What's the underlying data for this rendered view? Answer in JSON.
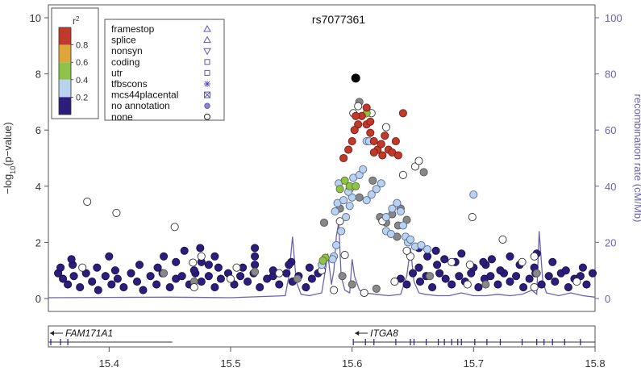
{
  "chart_data": {
    "type": "scatter",
    "title": "rs7077361",
    "ylabel_left_main": "−log",
    "ylabel_left_sub": "10",
    "ylabel_left_rest": "(p−value)",
    "ylabel_right": "recombination rate (cM/Mb)",
    "xlim": [
      15.35,
      15.8
    ],
    "ylim_left": [
      0,
      10
    ],
    "ylim_right": [
      0,
      100
    ],
    "x_ticks": [
      "15.4",
      "15.5",
      "15.6",
      "15.7",
      "15.8"
    ],
    "x_tick_values": [
      15.4,
      15.5,
      15.6,
      15.7,
      15.8
    ],
    "y_ticks_left": [
      "0",
      "2",
      "4",
      "6",
      "8",
      "10"
    ],
    "y_tick_values_left": [
      0,
      2,
      4,
      6,
      8,
      10
    ],
    "y_ticks_right": [
      "0",
      "20",
      "40",
      "60",
      "80",
      "100"
    ],
    "y_tick_values_right": [
      0,
      20,
      40,
      60,
      80,
      100
    ],
    "grid": false,
    "legend_position": "top-left",
    "colorbar": {
      "title": "r",
      "title_sup": "2",
      "labels": [
        "0.8",
        "0.6",
        "0.4",
        "0.2"
      ],
      "bands": [
        {
          "range": [
            0.8,
            1.0
          ],
          "color": "#c0392b"
        },
        {
          "range": [
            0.6,
            0.8
          ],
          "color": "#e0a53a"
        },
        {
          "range": [
            0.4,
            0.6
          ],
          "color": "#8ec24a"
        },
        {
          "range": [
            0.2,
            0.4
          ],
          "color": "#b9d3ef"
        },
        {
          "range": [
            0.0,
            0.2
          ],
          "color": "#2c1d7a"
        }
      ]
    },
    "annotation_legend": [
      {
        "label": "framestop",
        "symbol": "triangle-up"
      },
      {
        "label": "splice",
        "symbol": "triangle-up"
      },
      {
        "label": "nonsyn",
        "symbol": "triangle-down"
      },
      {
        "label": "coding",
        "symbol": "square"
      },
      {
        "label": "utr",
        "symbol": "square"
      },
      {
        "label": "tfbscons",
        "symbol": "asterisk"
      },
      {
        "label": "mcs44placental",
        "symbol": "square-x"
      },
      {
        "label": "no annotation",
        "symbol": "circle-filled"
      },
      {
        "label": "none",
        "symbol": "circle-open"
      }
    ],
    "lead_snp": {
      "x": 15.603,
      "y": 7.85
    },
    "snps": [
      [
        15.358,
        0.9,
        "N"
      ],
      [
        15.362,
        0.7,
        "N"
      ],
      [
        15.366,
        0.5,
        "N"
      ],
      [
        15.371,
        0.8,
        "N"
      ],
      [
        15.376,
        0.4,
        "N"
      ],
      [
        15.381,
        0.9,
        "N"
      ],
      [
        15.386,
        0.6,
        "N"
      ],
      [
        15.391,
        0.3,
        "N"
      ],
      [
        15.397,
        0.8,
        "N"
      ],
      [
        15.402,
        0.5,
        "N"
      ],
      [
        15.407,
        0.7,
        "N"
      ],
      [
        15.412,
        0.4,
        "N"
      ],
      [
        15.418,
        0.9,
        "N"
      ],
      [
        15.423,
        0.6,
        "N"
      ],
      [
        15.428,
        0.3,
        "N"
      ],
      [
        15.434,
        0.8,
        "N"
      ],
      [
        15.439,
        0.5,
        "N"
      ],
      [
        15.444,
        0.9,
        "N"
      ],
      [
        15.45,
        0.4,
        "N"
      ],
      [
        15.455,
        0.7,
        "N"
      ],
      [
        15.46,
        0.8,
        "N"
      ],
      [
        15.466,
        0.5,
        "N"
      ],
      [
        15.471,
        0.9,
        "N"
      ],
      [
        15.476,
        0.6,
        "N"
      ],
      [
        15.482,
        0.8,
        "N"
      ],
      [
        15.487,
        0.4,
        "N"
      ],
      [
        15.492,
        0.7,
        "N"
      ],
      [
        15.498,
        0.9,
        "N"
      ],
      [
        15.503,
        0.5,
        "N"
      ],
      [
        15.508,
        0.8,
        "N"
      ],
      [
        15.514,
        0.6,
        "N"
      ],
      [
        15.519,
        0.9,
        "N"
      ],
      [
        15.524,
        0.4,
        "N"
      ],
      [
        15.53,
        0.7,
        "N"
      ],
      [
        15.535,
        0.8,
        "N"
      ],
      [
        15.54,
        0.5,
        "N"
      ],
      [
        15.546,
        0.9,
        "N"
      ],
      [
        15.551,
        0.6,
        "N"
      ],
      [
        15.556,
        0.8,
        "N"
      ],
      [
        15.562,
        0.4,
        "N"
      ],
      [
        15.567,
        0.7,
        "N"
      ],
      [
        15.572,
        0.9,
        "N"
      ],
      [
        15.64,
        0.7,
        "N"
      ],
      [
        15.645,
        0.5,
        "N"
      ],
      [
        15.65,
        0.9,
        "N"
      ],
      [
        15.656,
        0.6,
        "N"
      ],
      [
        15.661,
        0.8,
        "N"
      ],
      [
        15.666,
        0.4,
        "N"
      ],
      [
        15.672,
        0.9,
        "N"
      ],
      [
        15.677,
        0.7,
        "N"
      ],
      [
        15.682,
        0.5,
        "N"
      ],
      [
        15.688,
        0.8,
        "N"
      ],
      [
        15.693,
        0.6,
        "N"
      ],
      [
        15.698,
        0.9,
        "N"
      ],
      [
        15.704,
        0.4,
        "N"
      ],
      [
        15.709,
        0.7,
        "N"
      ],
      [
        15.714,
        0.8,
        "N"
      ],
      [
        15.72,
        0.5,
        "N"
      ],
      [
        15.725,
        0.9,
        "N"
      ],
      [
        15.73,
        0.6,
        "N"
      ],
      [
        15.735,
        0.8,
        "N"
      ],
      [
        15.741,
        0.4,
        "N"
      ],
      [
        15.746,
        0.7,
        "N"
      ],
      [
        15.751,
        0.9,
        "N"
      ],
      [
        15.756,
        0.5,
        "N"
      ],
      [
        15.762,
        0.8,
        "N"
      ],
      [
        15.767,
        0.6,
        "N"
      ],
      [
        15.772,
        0.9,
        "N"
      ],
      [
        15.778,
        0.4,
        "N"
      ],
      [
        15.783,
        0.7,
        "N"
      ],
      [
        15.788,
        0.8,
        "N"
      ],
      [
        15.793,
        0.5,
        "N"
      ],
      [
        15.798,
        0.9,
        "N"
      ],
      [
        15.36,
        1.1,
        "N"
      ],
      [
        15.37,
        1.2,
        "N"
      ],
      [
        15.39,
        1.1,
        "N"
      ],
      [
        15.405,
        1.0,
        "N"
      ],
      [
        15.425,
        1.2,
        "N"
      ],
      [
        15.44,
        1.1,
        "N"
      ],
      [
        15.455,
        1.3,
        "N"
      ],
      [
        15.47,
        1.0,
        "N"
      ],
      [
        15.482,
        1.2,
        "N"
      ],
      [
        15.49,
        1.1,
        "N"
      ],
      [
        15.51,
        1.1,
        "N"
      ],
      [
        15.52,
        1.2,
        "N"
      ],
      [
        15.535,
        1.0,
        "N"
      ],
      [
        15.55,
        1.3,
        "N"
      ],
      [
        15.565,
        1.1,
        "N"
      ],
      [
        15.655,
        1.1,
        "N"
      ],
      [
        15.67,
        1.2,
        "N"
      ],
      [
        15.685,
        1.3,
        "N"
      ],
      [
        15.7,
        1.1,
        "N"
      ],
      [
        15.71,
        1.2,
        "N"
      ],
      [
        15.722,
        1.0,
        "N"
      ],
      [
        15.738,
        1.2,
        "N"
      ],
      [
        15.75,
        1.1,
        "N"
      ],
      [
        15.765,
        1.3,
        "N"
      ],
      [
        15.776,
        1.0,
        "N"
      ],
      [
        15.79,
        1.1,
        "N"
      ],
      [
        15.369,
        1.4,
        "N"
      ],
      [
        15.4,
        1.5,
        "N"
      ],
      [
        15.445,
        1.5,
        "N"
      ],
      [
        15.462,
        1.7,
        "N"
      ],
      [
        15.476,
        1.3,
        "N"
      ],
      [
        15.487,
        1.5,
        "N"
      ],
      [
        15.52,
        1.5,
        "N"
      ],
      [
        15.548,
        1.2,
        "N"
      ],
      [
        15.662,
        1.5,
        "N"
      ],
      [
        15.669,
        1.7,
        "N"
      ],
      [
        15.676,
        1.4,
        "N"
      ],
      [
        15.708,
        1.3,
        "N"
      ],
      [
        15.73,
        1.5,
        "N"
      ],
      [
        15.752,
        1.6,
        "N"
      ],
      [
        15.715,
        1.4,
        "N"
      ],
      [
        15.475,
        1.8,
        "N"
      ],
      [
        15.52,
        1.8,
        "N"
      ],
      [
        15.655,
        1.8,
        "N"
      ],
      [
        15.69,
        1.6,
        "N"
      ],
      [
        15.52,
        0.95,
        "G"
      ],
      [
        15.47,
        0.6,
        "G"
      ],
      [
        15.555,
        0.7,
        "G"
      ],
      [
        15.664,
        0.8,
        "G"
      ],
      [
        15.71,
        0.5,
        "G"
      ],
      [
        15.752,
        0.9,
        "G"
      ],
      [
        15.445,
        0.9,
        "G"
      ],
      [
        15.6,
        0.5,
        "G"
      ],
      [
        15.62,
        0.35,
        "G"
      ],
      [
        15.592,
        0.8,
        "G"
      ],
      [
        15.575,
        1.0,
        "O"
      ],
      [
        15.585,
        0.3,
        "O"
      ],
      [
        15.61,
        0.2,
        "O"
      ],
      [
        15.635,
        0.6,
        "O"
      ],
      [
        15.47,
        0.4,
        "O"
      ],
      [
        15.5,
        0.7,
        "O"
      ],
      [
        15.75,
        0.4,
        "O"
      ],
      [
        15.378,
        1.1,
        "O"
      ],
      [
        15.695,
        0.5,
        "O"
      ],
      [
        15.785,
        0.6,
        "O"
      ],
      [
        15.382,
        3.45,
        "O"
      ],
      [
        15.406,
        3.05,
        "O"
      ],
      [
        15.454,
        2.55,
        "O"
      ],
      [
        15.476,
        1.5,
        "O"
      ],
      [
        15.469,
        1.28,
        "O"
      ],
      [
        15.505,
        1.1,
        "O"
      ],
      [
        15.54,
        0.9,
        "O"
      ],
      [
        15.648,
        1.5,
        "O"
      ],
      [
        15.682,
        1.3,
        "O"
      ],
      [
        15.699,
        2.9,
        "O"
      ],
      [
        15.724,
        2.1,
        "O"
      ],
      [
        15.74,
        1.3,
        "O"
      ],
      [
        15.75,
        1.5,
        "O"
      ],
      [
        15.697,
        1.2,
        "O"
      ],
      [
        15.59,
        2.75,
        "O"
      ],
      [
        15.594,
        1.55,
        "O"
      ],
      [
        15.625,
        2.75,
        "O"
      ],
      [
        15.645,
        1.7,
        "O"
      ],
      [
        15.628,
        2.9,
        "L"
      ],
      [
        15.633,
        3.2,
        "L"
      ],
      [
        15.637,
        3.4,
        "L"
      ],
      [
        15.64,
        3.1,
        "L"
      ],
      [
        15.642,
        2.6,
        "L"
      ],
      [
        15.644,
        2.2,
        "L"
      ],
      [
        15.646,
        2.0,
        "L"
      ],
      [
        15.648,
        2.1,
        "L"
      ],
      [
        15.652,
        1.85,
        "L"
      ],
      [
        15.657,
        1.9,
        "L"
      ],
      [
        15.662,
        1.75,
        "L"
      ],
      [
        15.7,
        3.7,
        "L"
      ],
      [
        15.575,
        1.2,
        "L"
      ],
      [
        15.587,
        1.9,
        "L"
      ],
      [
        15.591,
        2.4,
        "L"
      ],
      [
        15.595,
        2.9,
        "L"
      ],
      [
        15.598,
        3.3,
        "L"
      ],
      [
        15.6,
        3.6,
        "L"
      ],
      [
        15.612,
        3.5,
        "L"
      ],
      [
        15.616,
        3.7,
        "L"
      ],
      [
        15.62,
        3.9,
        "L"
      ],
      [
        15.624,
        4.1,
        "L"
      ],
      [
        15.628,
        2.4,
        "L"
      ],
      [
        15.632,
        2.3,
        "L"
      ],
      [
        15.586,
        3.1,
        "L"
      ],
      [
        15.588,
        3.4,
        "L"
      ],
      [
        15.593,
        3.5,
        "L"
      ],
      [
        15.597,
        3.8,
        "L"
      ],
      [
        15.589,
        4.1,
        "L"
      ],
      [
        15.601,
        4.3,
        "L"
      ],
      [
        15.606,
        4.4,
        "L"
      ],
      [
        15.609,
        4.6,
        "L"
      ],
      [
        15.612,
        5.6,
        "L"
      ],
      [
        15.614,
        5.6,
        "L"
      ],
      [
        15.585,
        1.5,
        "L"
      ],
      [
        15.584,
        1.4,
        "L"
      ],
      [
        15.578,
        1.45,
        "G2"
      ],
      [
        15.576,
        1.35,
        "G2"
      ],
      [
        15.59,
        3.9,
        "G2"
      ],
      [
        15.594,
        4.2,
        "G2"
      ],
      [
        15.598,
        4.0,
        "G2"
      ],
      [
        15.603,
        4.0,
        "G2"
      ],
      [
        15.612,
        6.6,
        "G2"
      ],
      [
        15.612,
        6.2,
        "R"
      ],
      [
        15.615,
        5.9,
        "R"
      ],
      [
        15.618,
        5.6,
        "R"
      ],
      [
        15.621,
        5.3,
        "R"
      ],
      [
        15.624,
        5.5,
        "R"
      ],
      [
        15.627,
        5.8,
        "R"
      ],
      [
        15.63,
        5.3,
        "R"
      ],
      [
        15.633,
        5.2,
        "R"
      ],
      [
        15.636,
        5.6,
        "R"
      ],
      [
        15.638,
        5.1,
        "R"
      ],
      [
        15.608,
        6.5,
        "R"
      ],
      [
        15.605,
        6.2,
        "R"
      ],
      [
        15.602,
        6.0,
        "R"
      ],
      [
        15.6,
        5.6,
        "R"
      ],
      [
        15.597,
        5.3,
        "R"
      ],
      [
        15.593,
        5.0,
        "R"
      ],
      [
        15.612,
        6.8,
        "R"
      ],
      [
        15.642,
        6.6,
        "R"
      ],
      [
        15.615,
        6.3,
        "R"
      ],
      [
        15.625,
        5.1,
        "R"
      ],
      [
        15.618,
        5.2,
        "R"
      ],
      [
        15.603,
        6.5,
        "R"
      ],
      [
        15.601,
        6.6,
        "O"
      ],
      [
        15.605,
        6.85,
        "O"
      ],
      [
        15.616,
        6.6,
        "O"
      ],
      [
        15.628,
        6.1,
        "O"
      ],
      [
        15.598,
        3.9,
        "O"
      ],
      [
        15.652,
        4.7,
        "O"
      ],
      [
        15.655,
        4.9,
        "O"
      ],
      [
        15.642,
        4.4,
        "O"
      ],
      [
        15.606,
        7.0,
        "G"
      ],
      [
        15.659,
        4.5,
        "G"
      ],
      [
        15.617,
        4.2,
        "G"
      ],
      [
        15.64,
        3.2,
        "G"
      ],
      [
        15.638,
        2.6,
        "G"
      ],
      [
        15.637,
        2.2,
        "G"
      ],
      [
        15.606,
        3.6,
        "G"
      ],
      [
        15.59,
        3.2,
        "G"
      ],
      [
        15.577,
        2.7,
        "G"
      ],
      [
        15.633,
        3.0,
        "G"
      ],
      [
        15.645,
        2.8,
        "G"
      ],
      [
        15.628,
        2.7,
        "G"
      ],
      [
        15.623,
        2.9,
        "G"
      ]
    ],
    "recombination": [
      [
        15.35,
        0.3
      ],
      [
        15.4,
        0.4
      ],
      [
        15.45,
        0.5
      ],
      [
        15.5,
        0.3
      ],
      [
        15.545,
        1.0
      ],
      [
        15.548,
        8.0
      ],
      [
        15.551,
        22.0
      ],
      [
        15.554,
        6.0
      ],
      [
        15.558,
        1.5
      ],
      [
        15.565,
        1.0
      ],
      [
        15.575,
        2.0
      ],
      [
        15.578,
        10.0
      ],
      [
        15.58,
        16.0
      ],
      [
        15.583,
        5.0
      ],
      [
        15.585,
        10.0
      ],
      [
        15.587,
        22.0
      ],
      [
        15.589,
        27.0
      ],
      [
        15.591,
        8.0
      ],
      [
        15.594,
        3.0
      ],
      [
        15.598,
        2.0
      ],
      [
        15.6,
        14.0
      ],
      [
        15.602,
        8.0
      ],
      [
        15.606,
        3.0
      ],
      [
        15.61,
        2.0
      ],
      [
        15.62,
        1.5
      ],
      [
        15.63,
        1.0
      ],
      [
        15.64,
        1.5
      ],
      [
        15.645,
        8.0
      ],
      [
        15.648,
        18.0
      ],
      [
        15.651,
        6.0
      ],
      [
        15.655,
        2.0
      ],
      [
        15.66,
        1.5
      ],
      [
        15.67,
        1.0
      ],
      [
        15.68,
        1.0
      ],
      [
        15.69,
        2.0
      ],
      [
        15.7,
        1.0
      ],
      [
        15.71,
        1.0
      ],
      [
        15.72,
        1.5
      ],
      [
        15.73,
        1.0
      ],
      [
        15.74,
        1.5
      ],
      [
        15.748,
        3.0
      ],
      [
        15.752,
        1.5
      ],
      [
        15.754,
        24.0
      ],
      [
        15.757,
        6.0
      ],
      [
        15.76,
        2.0
      ],
      [
        15.77,
        1.0
      ],
      [
        15.78,
        2.0
      ],
      [
        15.79,
        1.0
      ],
      [
        15.8,
        0.5
      ]
    ],
    "genes": [
      {
        "name": "FAM171A1",
        "start": 15.35,
        "end": 15.452,
        "strand": "-",
        "exons": [
          15.352,
          15.36,
          15.366
        ]
      },
      {
        "name": "ITGA8",
        "start": 15.601,
        "end": 15.8,
        "strand": "-",
        "exons": [
          15.601,
          15.611,
          15.618,
          15.636,
          15.648,
          15.651,
          15.661,
          15.671,
          15.676,
          15.682,
          15.687,
          15.69,
          15.701,
          15.711,
          15.722,
          15.74,
          15.752,
          15.758,
          15.765,
          15.775,
          15.788
        ]
      }
    ]
  }
}
